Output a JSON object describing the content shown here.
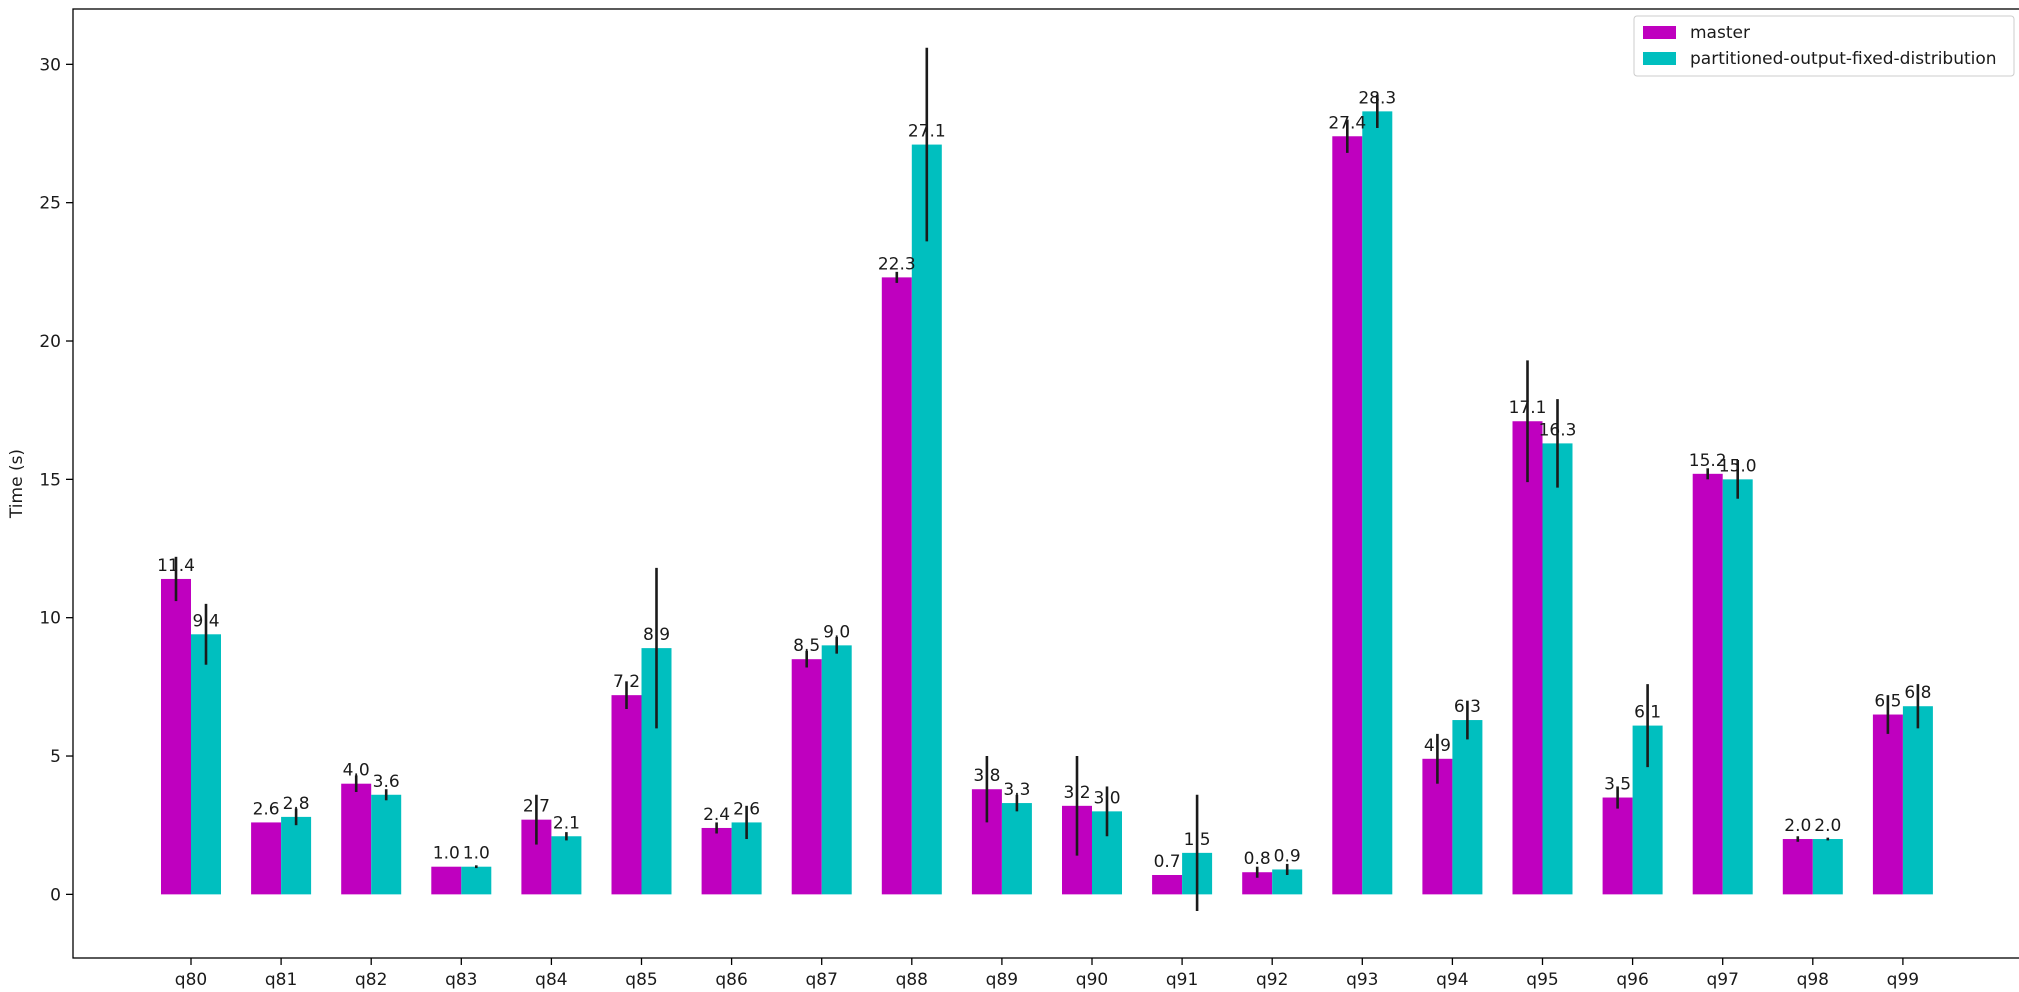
{
  "chart_data": {
    "type": "bar",
    "title": "",
    "xlabel": "",
    "ylabel": "Time (s)",
    "ylim": [
      -2.3,
      32
    ],
    "yticks": [
      0,
      5,
      10,
      15,
      20,
      25,
      30
    ],
    "grid": false,
    "legend_position": "top-right",
    "categories": [
      "q80",
      "q81",
      "q82",
      "q83",
      "q84",
      "q85",
      "q86",
      "q87",
      "q88",
      "q89",
      "q90",
      "q91",
      "q92",
      "q93",
      "q94",
      "q95",
      "q96",
      "q97",
      "q98",
      "q99"
    ],
    "series": [
      {
        "name": "master",
        "color": "#bf00bf",
        "values": [
          11.4,
          2.6,
          4.0,
          1.0,
          2.7,
          7.2,
          2.4,
          8.5,
          22.3,
          3.8,
          3.2,
          0.7,
          0.8,
          27.4,
          4.9,
          17.1,
          3.5,
          15.2,
          2.0,
          6.5
        ],
        "labels": [
          "11.4",
          "2.6",
          "4.0",
          "1.0",
          "2.7",
          "7.2",
          "2.4",
          "8.5",
          "22.3",
          "3.8",
          "3.2",
          "0.7",
          "0.8",
          "27.4",
          "4.9",
          "17.1",
          "3.5",
          "15.2",
          "2.0",
          "6.5"
        ],
        "errors": [
          0.8,
          0.0,
          0.3,
          0.0,
          0.9,
          0.5,
          0.2,
          0.3,
          0.2,
          1.2,
          1.8,
          0.0,
          0.2,
          0.6,
          0.9,
          2.2,
          0.4,
          0.2,
          0.1,
          0.7
        ]
      },
      {
        "name": "partitioned-output-fixed-distribution",
        "color": "#00bfbf",
        "values": [
          9.4,
          2.8,
          3.6,
          1.0,
          2.1,
          8.9,
          2.6,
          9.0,
          27.1,
          3.3,
          3.0,
          1.5,
          0.9,
          28.3,
          6.3,
          16.3,
          6.1,
          15.0,
          2.0,
          6.8
        ],
        "labels": [
          "9.4",
          "2.8",
          "3.6",
          "1.0",
          "2.1",
          "8.9",
          "2.6",
          "9.0",
          "27.1",
          "3.3",
          "3.0",
          "1.5",
          "0.9",
          "28.3",
          "6.3",
          "16.3",
          "6.1",
          "15.0",
          "2.0",
          "6.8"
        ],
        "errors": [
          1.1,
          0.3,
          0.2,
          0.05,
          0.15,
          2.9,
          0.6,
          0.3,
          3.5,
          0.3,
          0.9,
          2.1,
          0.2,
          0.6,
          0.7,
          1.6,
          1.5,
          0.7,
          0.05,
          0.8
        ]
      }
    ]
  }
}
